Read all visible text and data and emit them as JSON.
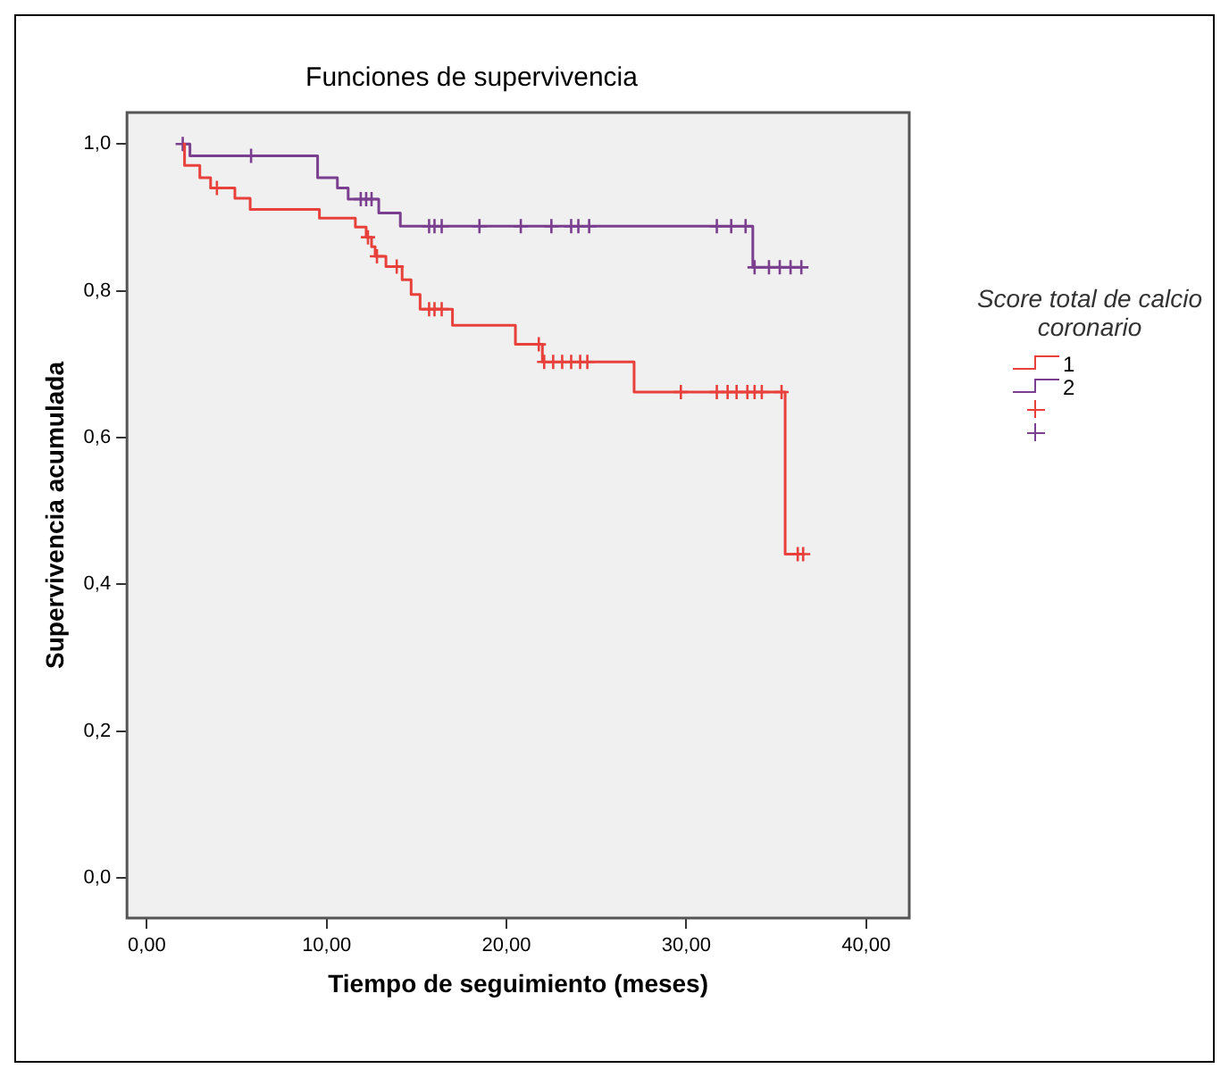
{
  "chart_data": {
    "type": "step",
    "title": "Funciones de supervivencia",
    "xlabel": "Tiempo de seguimiento (meses)",
    "ylabel": "Supervivencia acumulada",
    "legend_title": "Score total de calcio coronario",
    "legend": "right",
    "grid": false,
    "xlim": [
      -1.1,
      42.4
    ],
    "ylim": [
      -0.055,
      1.043
    ],
    "xticks": [
      {
        "value": 0,
        "label": "0,00"
      },
      {
        "value": 10,
        "label": "10,00"
      },
      {
        "value": 20,
        "label": "20,00"
      },
      {
        "value": 30,
        "label": "30,00"
      },
      {
        "value": 40,
        "label": "40,00"
      }
    ],
    "yticks": [
      {
        "value": 0,
        "label": "0,0"
      },
      {
        "value": 0.2,
        "label": "0,2"
      },
      {
        "value": 0.4,
        "label": "0,4"
      },
      {
        "value": 0.6,
        "label": "0,6"
      },
      {
        "value": 0.8,
        "label": "0,8"
      },
      {
        "value": 1,
        "label": "1,0"
      }
    ],
    "series": [
      {
        "name": "1",
        "color": "#e8413c",
        "x": [
          2.0,
          2.1,
          2.95,
          3.55,
          4.9,
          5.75,
          9.6,
          11.6,
          12.2,
          12.5,
          12.7,
          13.3,
          14.2,
          14.7,
          15.2,
          17.0,
          20.5,
          22.0,
          27.1,
          35.5,
          36.5
        ],
        "values": [
          1.0,
          0.971,
          0.954,
          0.94,
          0.926,
          0.911,
          0.899,
          0.887,
          0.873,
          0.86,
          0.847,
          0.833,
          0.815,
          0.795,
          0.775,
          0.753,
          0.727,
          0.703,
          0.662,
          0.441,
          0.441
        ]
      },
      {
        "name": "2",
        "color": "#7b3f8f",
        "x": [
          2.0,
          2.4,
          9.5,
          10.6,
          11.2,
          12.9,
          14.1,
          33.7,
          36.4
        ],
        "values": [
          1.0,
          0.984,
          0.954,
          0.94,
          0.925,
          0.906,
          0.888,
          0.832,
          0.832
        ]
      },
      {
        "type": "scatter",
        "marker": "cross",
        "color": "#e8413c",
        "x": [
          3.9,
          12.3,
          12.8,
          13.9,
          15.7,
          16.0,
          16.4,
          21.8,
          22.1,
          22.6,
          23.1,
          23.6,
          24.1,
          24.5,
          29.7,
          31.7,
          32.3,
          32.8,
          33.4,
          33.8,
          34.2,
          35.3,
          36.2,
          36.5
        ],
        "values": [
          0.94,
          0.873,
          0.847,
          0.833,
          0.775,
          0.775,
          0.775,
          0.727,
          0.703,
          0.703,
          0.703,
          0.703,
          0.703,
          0.703,
          0.662,
          0.662,
          0.662,
          0.662,
          0.662,
          0.662,
          0.662,
          0.662,
          0.441,
          0.441
        ]
      },
      {
        "type": "scatter",
        "marker": "cross",
        "color": "#7b3f8f",
        "x": [
          2.0,
          5.8,
          11.9,
          12.2,
          12.5,
          15.7,
          16.0,
          16.4,
          18.5,
          20.8,
          22.5,
          23.6,
          24.0,
          24.6,
          31.7,
          32.5,
          33.3,
          33.8,
          34.6,
          35.2,
          35.8,
          36.4
        ],
        "values": [
          1.0,
          0.984,
          0.925,
          0.925,
          0.925,
          0.888,
          0.888,
          0.888,
          0.888,
          0.888,
          0.888,
          0.888,
          0.888,
          0.888,
          0.888,
          0.888,
          0.888,
          0.832,
          0.832,
          0.832,
          0.832,
          0.832
        ]
      }
    ]
  }
}
